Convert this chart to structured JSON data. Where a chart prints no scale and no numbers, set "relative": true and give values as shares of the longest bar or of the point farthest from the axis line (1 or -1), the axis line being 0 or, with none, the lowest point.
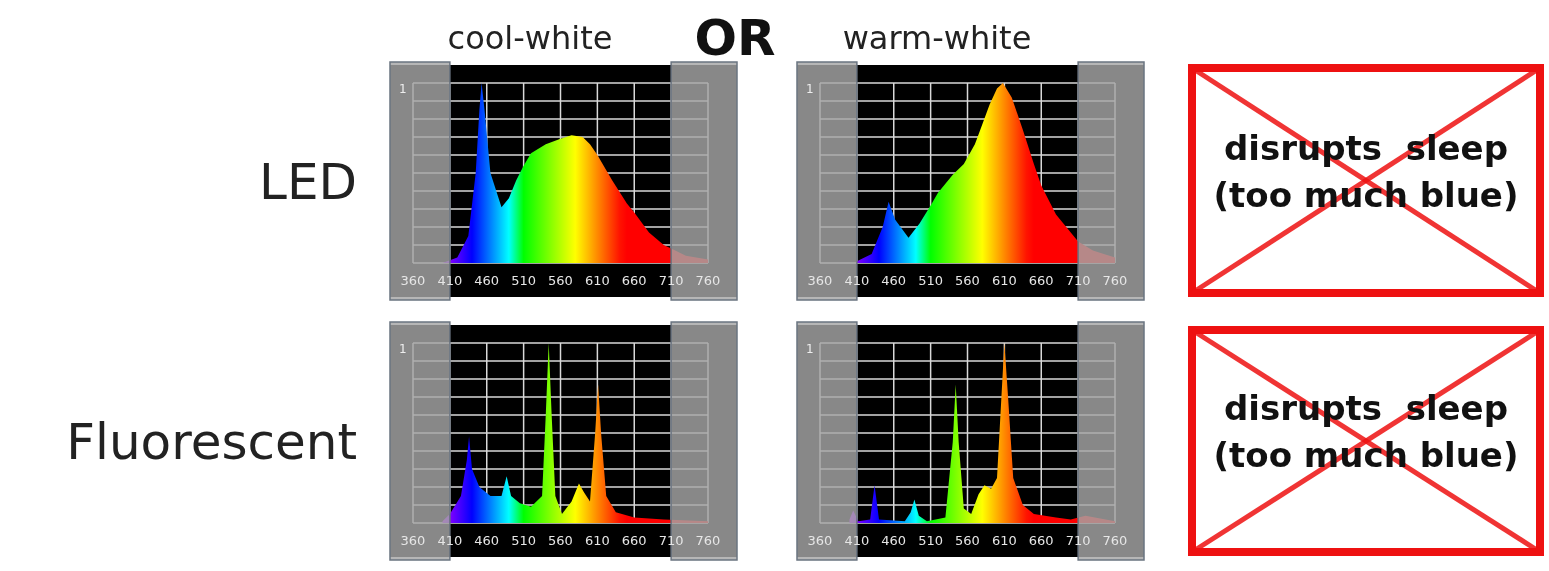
{
  "chart_data": [
    {
      "type": "area",
      "title": "cool-white",
      "ylabel": "LED",
      "relative": true,
      "xlim": [
        360,
        760
      ],
      "xticks": [
        360,
        410,
        460,
        510,
        560,
        610,
        660,
        710,
        760
      ],
      "grid": true,
      "annotations": [
        "1"
      ],
      "bands": [
        {
          "axis": "x",
          "from": 360,
          "to": 410,
          "color": "#a6a6a6"
        },
        {
          "axis": "x",
          "from": 710,
          "to": 760,
          "color": "#a6a6a6"
        }
      ],
      "series": [
        {
          "x": [
            400,
            420,
            435,
            445,
            450,
            453,
            457,
            465,
            480,
            490,
            500,
            510,
            520,
            540,
            560,
            575,
            590,
            600,
            610,
            630,
            650,
            660,
            680,
            700,
            710,
            730,
            760
          ],
          "values": [
            0.0,
            0.03,
            0.15,
            0.5,
            0.85,
            1.0,
            0.85,
            0.5,
            0.31,
            0.36,
            0.46,
            0.54,
            0.61,
            0.66,
            0.69,
            0.71,
            0.7,
            0.66,
            0.6,
            0.46,
            0.33,
            0.28,
            0.17,
            0.1,
            0.08,
            0.04,
            0.02
          ]
        }
      ]
    },
    {
      "type": "area",
      "title": "warm-white",
      "relative": true,
      "xlim": [
        360,
        760
      ],
      "xticks": [
        360,
        410,
        460,
        510,
        560,
        610,
        660,
        710,
        760
      ],
      "grid": true,
      "annotations": [
        "1"
      ],
      "bands": [
        {
          "axis": "x",
          "from": 360,
          "to": 410,
          "color": "#a6a6a6"
        },
        {
          "axis": "x",
          "from": 710,
          "to": 760,
          "color": "#a6a6a6"
        }
      ],
      "series": [
        {
          "x": [
            410,
            430,
            445,
            453,
            462,
            480,
            495,
            510,
            520,
            540,
            555,
            570,
            580,
            590,
            600,
            608,
            620,
            635,
            650,
            660,
            680,
            700,
            710,
            730,
            760
          ],
          "values": [
            0.01,
            0.05,
            0.2,
            0.34,
            0.24,
            0.14,
            0.22,
            0.32,
            0.39,
            0.49,
            0.55,
            0.66,
            0.77,
            0.88,
            0.97,
            1.0,
            0.92,
            0.74,
            0.55,
            0.43,
            0.27,
            0.17,
            0.12,
            0.07,
            0.03
          ]
        }
      ]
    },
    {
      "type": "area",
      "ylabel": "Fluorescent",
      "relative": true,
      "xlim": [
        360,
        760
      ],
      "xticks": [
        360,
        410,
        460,
        510,
        560,
        610,
        660,
        710,
        760
      ],
      "grid": true,
      "annotations": [
        "1"
      ],
      "bands": [
        {
          "axis": "x",
          "from": 360,
          "to": 410,
          "color": "#a6a6a6"
        },
        {
          "axis": "x",
          "from": 710,
          "to": 760,
          "color": "#a6a6a6"
        }
      ],
      "series": [
        {
          "x": [
            400,
            410,
            425,
            433,
            436,
            440,
            450,
            465,
            480,
            487,
            493,
            505,
            520,
            535,
            540,
            544,
            548,
            553,
            562,
            575,
            585,
            592,
            600,
            607,
            611,
            615,
            622,
            635,
            660,
            700,
            760
          ],
          "values": [
            0.01,
            0.05,
            0.15,
            0.35,
            0.48,
            0.3,
            0.2,
            0.15,
            0.15,
            0.26,
            0.15,
            0.11,
            0.09,
            0.15,
            0.6,
            1.0,
            0.6,
            0.15,
            0.05,
            0.12,
            0.22,
            0.17,
            0.12,
            0.5,
            0.77,
            0.5,
            0.15,
            0.06,
            0.03,
            0.02,
            0.01
          ]
        }
      ]
    },
    {
      "type": "area",
      "relative": true,
      "xlim": [
        360,
        760
      ],
      "xticks": [
        360,
        410,
        460,
        510,
        560,
        610,
        660,
        710,
        760
      ],
      "grid": true,
      "annotations": [
        "1"
      ],
      "bands": [
        {
          "axis": "x",
          "from": 360,
          "to": 410,
          "color": "#a6a6a6"
        },
        {
          "axis": "x",
          "from": 710,
          "to": 760,
          "color": "#a6a6a6"
        }
      ],
      "series": [
        {
          "x": [
            400,
            405,
            412,
            428,
            434,
            440,
            475,
            483,
            488,
            494,
            505,
            530,
            540,
            544,
            548,
            555,
            565,
            575,
            583,
            592,
            600,
            606,
            610,
            615,
            622,
            635,
            650,
            680,
            700,
            720,
            760
          ],
          "values": [
            0.02,
            0.07,
            0.01,
            0.02,
            0.21,
            0.02,
            0.01,
            0.06,
            0.13,
            0.04,
            0.01,
            0.03,
            0.45,
            0.77,
            0.45,
            0.08,
            0.05,
            0.16,
            0.21,
            0.19,
            0.25,
            0.7,
            1.0,
            0.7,
            0.25,
            0.1,
            0.05,
            0.03,
            0.02,
            0.04,
            0.01
          ]
        }
      ]
    },
    {
      "type": "other",
      "annotations": [
        "OR",
        "disrupts  sleep",
        "(too much blue)",
        "disrupts  sleep",
        "(too much blue)"
      ]
    }
  ]
}
